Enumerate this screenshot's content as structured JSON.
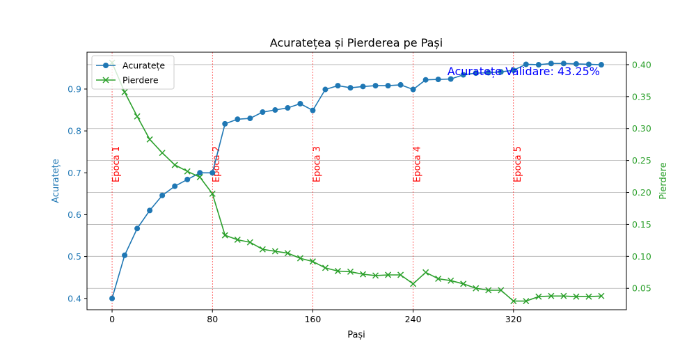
{
  "chart_data": {
    "type": "line",
    "title": "Acuratețea și Pierderea pe Pași",
    "xlabel": "Pași",
    "ylabel_left": "Acuratețe",
    "ylabel_right": "Pierdere",
    "xlim": [
      -20,
      410
    ],
    "ylim_left": [
      0.373,
      0.988
    ],
    "ylim_right": [
      0.0165,
      0.4195
    ],
    "x_ticks": [
      0,
      80,
      160,
      240,
      320
    ],
    "y_left_ticks": [
      0.4,
      0.5,
      0.6,
      0.7,
      0.8,
      0.9
    ],
    "y_right_ticks": [
      0.05,
      0.1,
      0.15,
      0.2,
      0.25,
      0.3,
      0.35,
      0.4
    ],
    "grid": "horizontal, right axis",
    "legend_position": "top-left",
    "x": [
      0,
      10,
      20,
      30,
      40,
      50,
      60,
      70,
      80,
      90,
      100,
      110,
      120,
      130,
      140,
      150,
      160,
      170,
      180,
      190,
      200,
      210,
      220,
      230,
      240,
      250,
      260,
      270,
      280,
      290,
      300,
      310,
      320,
      330,
      340,
      350,
      360,
      370,
      380,
      390
    ],
    "series": [
      {
        "name": "Acuratețe",
        "axis": "left",
        "color": "#1f77b4",
        "marker": "circle",
        "values": [
          0.4,
          0.503,
          0.567,
          0.61,
          0.646,
          0.668,
          0.684,
          0.7,
          0.7,
          0.817,
          0.828,
          0.83,
          0.845,
          0.85,
          0.855,
          0.865,
          0.849,
          0.899,
          0.908,
          0.903,
          0.906,
          0.908,
          0.908,
          0.91,
          0.899,
          0.922,
          0.923,
          0.924,
          0.934,
          0.938,
          0.939,
          0.941,
          0.945,
          0.959,
          0.958,
          0.961,
          0.961,
          0.96,
          0.959,
          0.958
        ]
      },
      {
        "name": "Pierdere",
        "axis": "right",
        "color": "#2ca02c",
        "marker": "x",
        "values": [
          0.403,
          0.357,
          0.319,
          0.283,
          0.262,
          0.243,
          0.233,
          0.224,
          0.198,
          0.133,
          0.126,
          0.122,
          0.111,
          0.108,
          0.105,
          0.097,
          0.092,
          0.082,
          0.077,
          0.076,
          0.072,
          0.07,
          0.071,
          0.071,
          0.057,
          0.075,
          0.065,
          0.062,
          0.057,
          0.05,
          0.047,
          0.047,
          0.03,
          0.03,
          0.037,
          0.038,
          0.038,
          0.037,
          0.037,
          0.038
        ]
      }
    ],
    "epoch_lines": {
      "color": "#ff0000",
      "x": [
        0,
        80,
        160,
        240,
        320
      ],
      "labels": [
        "Epoca 1",
        "Epoca 2",
        "Epoca 3",
        "Epoca 4",
        "Epoca 5"
      ]
    },
    "annotation": {
      "text": "Acuratețe Validare: 43.25%",
      "color": "#0000ff"
    }
  }
}
